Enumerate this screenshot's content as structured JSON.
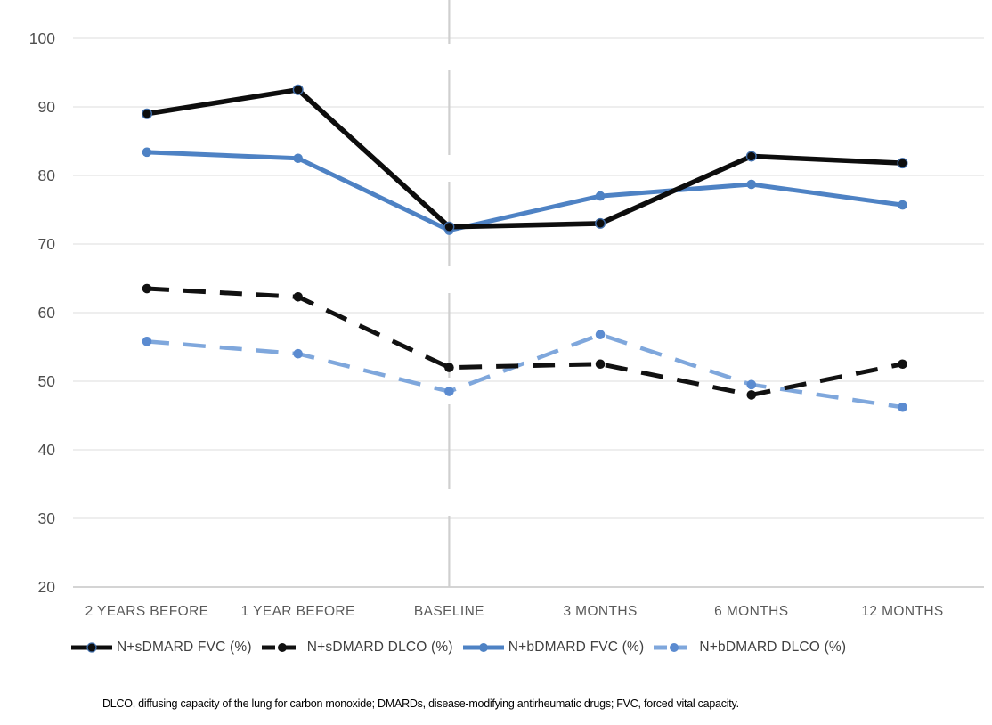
{
  "chart_data": {
    "type": "line",
    "categories": [
      "2 YEARS BEFORE",
      "1 YEAR BEFORE",
      "BASELINE",
      "3 MONTHS",
      "6 MONTHS",
      "12 MONTHS"
    ],
    "series": [
      {
        "name": "N+sDMARD FVC (%)",
        "values": [
          89,
          92.5,
          72.5,
          73,
          82.8,
          81.8
        ],
        "color": "#0d0d0d",
        "dash": "solid",
        "line_width": 5.6,
        "marker_color": "#0d0d0d",
        "marker_ring": "#3f6ca8"
      },
      {
        "name": "N+sDMARD DLCO (%)",
        "values": [
          63.5,
          62.3,
          52,
          52.5,
          48,
          52.5
        ],
        "color": "#111111",
        "dash": "dashed",
        "line_width": 5.0,
        "marker_color": "#111111",
        "marker_ring": ""
      },
      {
        "name": "N+bDMARD FVC (%)",
        "values": [
          83.4,
          82.5,
          72,
          77,
          78.7,
          75.7
        ],
        "color": "#4e82c4",
        "dash": "solid",
        "line_width": 5.0,
        "marker_color": "#4e82c4",
        "marker_ring": ""
      },
      {
        "name": "N+bDMARD DLCO (%)",
        "values": [
          55.8,
          54,
          48.5,
          56.8,
          49.5,
          46.2
        ],
        "color": "#7fa7dc",
        "dash": "dashed",
        "line_width": 4.5,
        "marker_color": "#5b8bd0",
        "marker_ring": ""
      }
    ],
    "ylim": [
      20,
      100
    ],
    "yticks": [
      20,
      30,
      40,
      50,
      60,
      70,
      80,
      90,
      100
    ],
    "grid": true,
    "legend_position": "bottom",
    "reference_line": {
      "category": "BASELINE",
      "orientation": "vertical",
      "style": "long-dash"
    }
  },
  "styles": {
    "grid_color": "#e3e3e3",
    "axis_line_color": "#c6c6c6",
    "reference_line_color": "#cfcfcf",
    "ytick_label_color": "#4e4e4e",
    "xtick_label_color": "#5a5a5a"
  },
  "footnote": "DLCO, diffusing capacity of the lung for carbon monoxide; DMARDs, disease-modifying antirheumatic drugs; FVC, forced vital capacity."
}
